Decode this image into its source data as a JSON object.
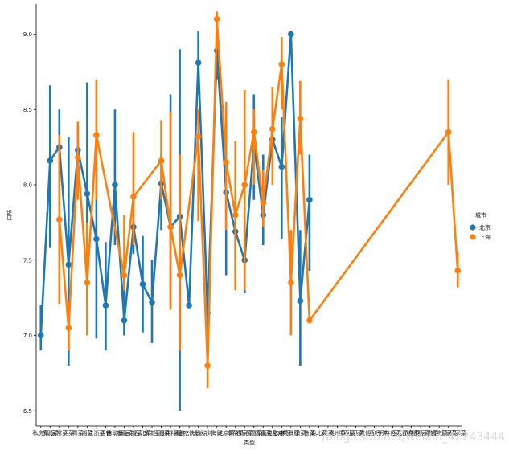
{
  "chart_data": {
    "type": "line",
    "title": "",
    "xlabel": "类型",
    "ylabel": "口味",
    "ylim": [
      6.4,
      9.2
    ],
    "yticks": [
      6.5,
      7.0,
      7.5,
      8.0,
      8.5,
      9.0
    ],
    "categories": [
      "私房菜",
      "东北菜",
      "家常菜",
      "川菜",
      "粤菜",
      "湘菜",
      "江浙菜",
      "西餐",
      "自助餐",
      "新疆菜",
      "云南菜",
      "西北菜",
      "东南亚",
      "台湾菜",
      "日韩料理",
      "素食",
      "小吃快餐",
      "火锅",
      "烧烤",
      "海鲜",
      "北京菜",
      "本帮菜",
      "农家菜",
      "创意菜",
      "清真菜",
      "面包甜点",
      "咖啡厅",
      "茶餐厅",
      "徽菜",
      "鲁菜",
      "湖北菜",
      "闽菜",
      "贵州菜",
      "江西菜",
      "山西菜",
      "其他",
      "酒吧",
      "粥店",
      "特色菜",
      "西北面食",
      "杭帮菜",
      "淮扬菜",
      "云贵菜",
      "官府菜",
      "土家菜",
      "私家菜"
    ],
    "legend": {
      "title": "城市",
      "placement": "right"
    },
    "series": [
      {
        "name": "北京",
        "color": "#1f77b4",
        "values": [
          7.0,
          8.16,
          8.25,
          7.47,
          8.23,
          7.94,
          7.64,
          7.2,
          8.0,
          7.1,
          7.72,
          7.34,
          7.22,
          8.01,
          7.72,
          7.79,
          7.2,
          8.81,
          7.15,
          8.89,
          7.95,
          7.69,
          7.5,
          8.27,
          7.8,
          8.3,
          8.12,
          9.0,
          7.23,
          7.9,
          null,
          null,
          null,
          null,
          null,
          null,
          null,
          null,
          null,
          null,
          null,
          null,
          null,
          null,
          null,
          null
        ],
        "ci_low": [
          6.9,
          7.58,
          8.0,
          6.8,
          7.98,
          7.2,
          6.98,
          6.9,
          7.6,
          7.0,
          7.54,
          7.02,
          6.95,
          7.7,
          7.2,
          6.5,
          7.2,
          8.6,
          7.02,
          8.7,
          7.4,
          7.4,
          7.28,
          7.9,
          7.6,
          8.03,
          7.64,
          9.0,
          6.8,
          7.43,
          null,
          null,
          null,
          null,
          null,
          null,
          null,
          null,
          null,
          null,
          null,
          null,
          null,
          null,
          null,
          null
        ],
        "ci_high": [
          7.2,
          8.66,
          8.5,
          8.32,
          8.4,
          8.68,
          8.3,
          7.62,
          8.5,
          7.4,
          7.76,
          7.66,
          7.5,
          8.2,
          8.6,
          8.9,
          7.2,
          9.02,
          7.2,
          9.1,
          8.5,
          7.92,
          7.8,
          8.6,
          8.2,
          8.6,
          8.45,
          9.0,
          7.7,
          8.2,
          null,
          null,
          null,
          null,
          null,
          null,
          null,
          null,
          null,
          null,
          null,
          null,
          null,
          null,
          null,
          null
        ]
      },
      {
        "name": "上海",
        "color": "#ff7f0e",
        "values": [
          null,
          null,
          7.77,
          7.05,
          8.18,
          7.35,
          8.33,
          null,
          null,
          7.4,
          7.92,
          null,
          null,
          8.16,
          7.72,
          7.4,
          null,
          8.32,
          6.8,
          9.1,
          8.15,
          7.8,
          8.0,
          8.35,
          7.88,
          8.37,
          8.8,
          7.35,
          8.44,
          7.1,
          null,
          null,
          null,
          null,
          null,
          null,
          null,
          null,
          null,
          null,
          null,
          null,
          null,
          null,
          8.35,
          7.43
        ],
        "ci_low": [
          null,
          null,
          7.21,
          6.9,
          7.9,
          7.0,
          7.9,
          null,
          null,
          7.3,
          7.6,
          null,
          null,
          7.9,
          7.17,
          6.9,
          null,
          7.76,
          6.65,
          8.9,
          7.7,
          7.3,
          7.3,
          8.0,
          7.72,
          8.0,
          8.5,
          7.0,
          8.2,
          7.1,
          null,
          null,
          null,
          null,
          null,
          null,
          null,
          null,
          null,
          null,
          null,
          null,
          null,
          null,
          8.0,
          7.32
        ],
        "ci_high": [
          null,
          null,
          8.33,
          7.22,
          8.42,
          7.75,
          8.7,
          null,
          null,
          7.8,
          8.35,
          null,
          null,
          8.43,
          8.48,
          8.2,
          null,
          8.5,
          7.05,
          9.15,
          8.55,
          8.29,
          8.63,
          8.5,
          8.1,
          8.65,
          8.98,
          7.7,
          8.69,
          7.1,
          null,
          null,
          null,
          null,
          null,
          null,
          null,
          null,
          null,
          null,
          null,
          null,
          null,
          null,
          8.7,
          7.55
        ]
      }
    ],
    "watermark": "/blog.csdn.net/weixin_42243444"
  }
}
